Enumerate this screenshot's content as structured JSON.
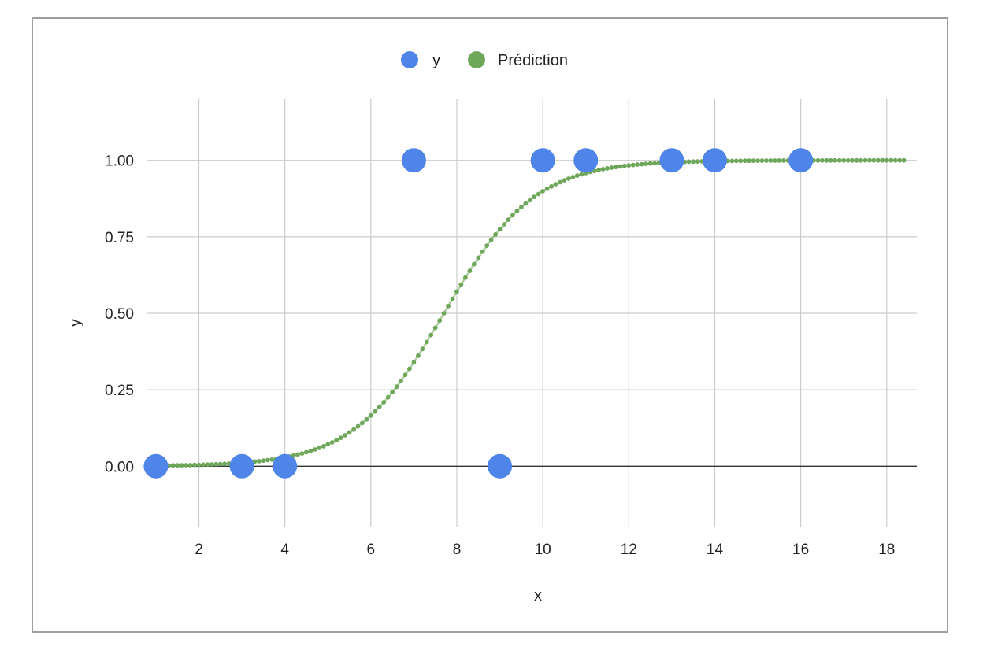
{
  "chart_data": {
    "type": "scatter",
    "title": "",
    "xlabel": "x",
    "ylabel": "y",
    "xlim": [
      0.8,
      18.7
    ],
    "ylim": [
      -0.2,
      1.2
    ],
    "x_ticks": [
      2,
      4,
      6,
      8,
      10,
      12,
      14,
      16,
      18
    ],
    "y_ticks": [
      0,
      0.25,
      0.5,
      0.75,
      1
    ],
    "y_tick_labels": [
      "0.00",
      "0.25",
      "0.50",
      "0.75",
      "1.00"
    ],
    "grid": true,
    "legend": {
      "position": "top"
    },
    "series": [
      {
        "name": "y",
        "color": "#4f85e8",
        "marker": "large-dot",
        "points": [
          {
            "x": 1,
            "y": 0
          },
          {
            "x": 3,
            "y": 0
          },
          {
            "x": 4,
            "y": 0
          },
          {
            "x": 7,
            "y": 1
          },
          {
            "x": 9,
            "y": 0
          },
          {
            "x": 10,
            "y": 1
          },
          {
            "x": 11,
            "y": 1
          },
          {
            "x": 13,
            "y": 1
          },
          {
            "x": 14,
            "y": 1
          },
          {
            "x": 16,
            "y": 1
          }
        ]
      },
      {
        "name": "Prédiction",
        "color": "#6fa75a",
        "marker": "small-dot",
        "curve": {
          "model": "logistic",
          "midpoint_x": 7.7,
          "slope": 0.95,
          "x_start": 1,
          "x_end": 18.4,
          "x_step": 0.1
        }
      }
    ]
  }
}
